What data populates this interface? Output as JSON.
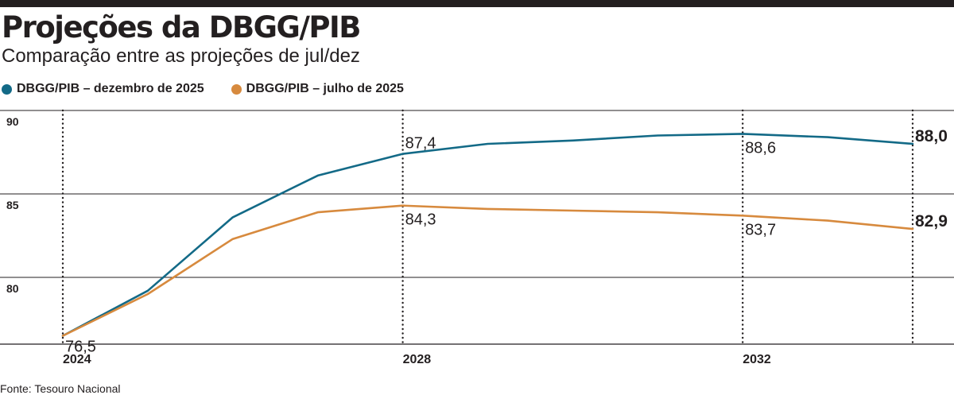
{
  "header": {
    "title": "Projeções da DBGG/PIB",
    "subtitle": "Comparação entre as projeções de jul/dez"
  },
  "chart_data": {
    "type": "line",
    "title": "Projeções da DBGG/PIB",
    "subtitle": "Comparação entre as projeções de jul/dez",
    "x": [
      2024,
      2025,
      2026,
      2027,
      2028,
      2029,
      2030,
      2031,
      2032,
      2033,
      2034
    ],
    "xticks": [
      "2024",
      "2028",
      "2032"
    ],
    "ylim": [
      76,
      90
    ],
    "yticks": [
      80,
      85,
      90
    ],
    "grid": true,
    "legend_position": "top-left",
    "series": [
      {
        "name": "DBGG/PIB – dezembro de 2025",
        "color": "#136a87",
        "values": [
          76.5,
          79.2,
          83.6,
          86.1,
          87.4,
          88.0,
          88.2,
          88.5,
          88.6,
          88.4,
          88.0
        ]
      },
      {
        "name": "DBGG/PIB – julho de 2025",
        "color": "#d78a3e",
        "values": [
          76.5,
          79.0,
          82.3,
          83.9,
          84.3,
          84.1,
          84.0,
          83.9,
          83.7,
          83.4,
          82.9
        ]
      }
    ],
    "annotations": [
      {
        "series": 0,
        "x": 2028,
        "text": "87,4"
      },
      {
        "series": 0,
        "x": 2032,
        "text": "88,6"
      },
      {
        "series": 1,
        "x": 2028,
        "text": "84,3"
      },
      {
        "series": 1,
        "x": 2032,
        "text": "83,7"
      },
      {
        "series": 0,
        "x": 2024,
        "text": "76,5"
      }
    ],
    "end_labels": [
      {
        "series": 0,
        "text": "88,0"
      },
      {
        "series": 1,
        "text": "82,9"
      }
    ]
  },
  "footer": {
    "source": "Fonte: Tesouro Nacional"
  },
  "colors": {
    "dark": "#231f20",
    "december": "#136a87",
    "july": "#d78a3e"
  }
}
